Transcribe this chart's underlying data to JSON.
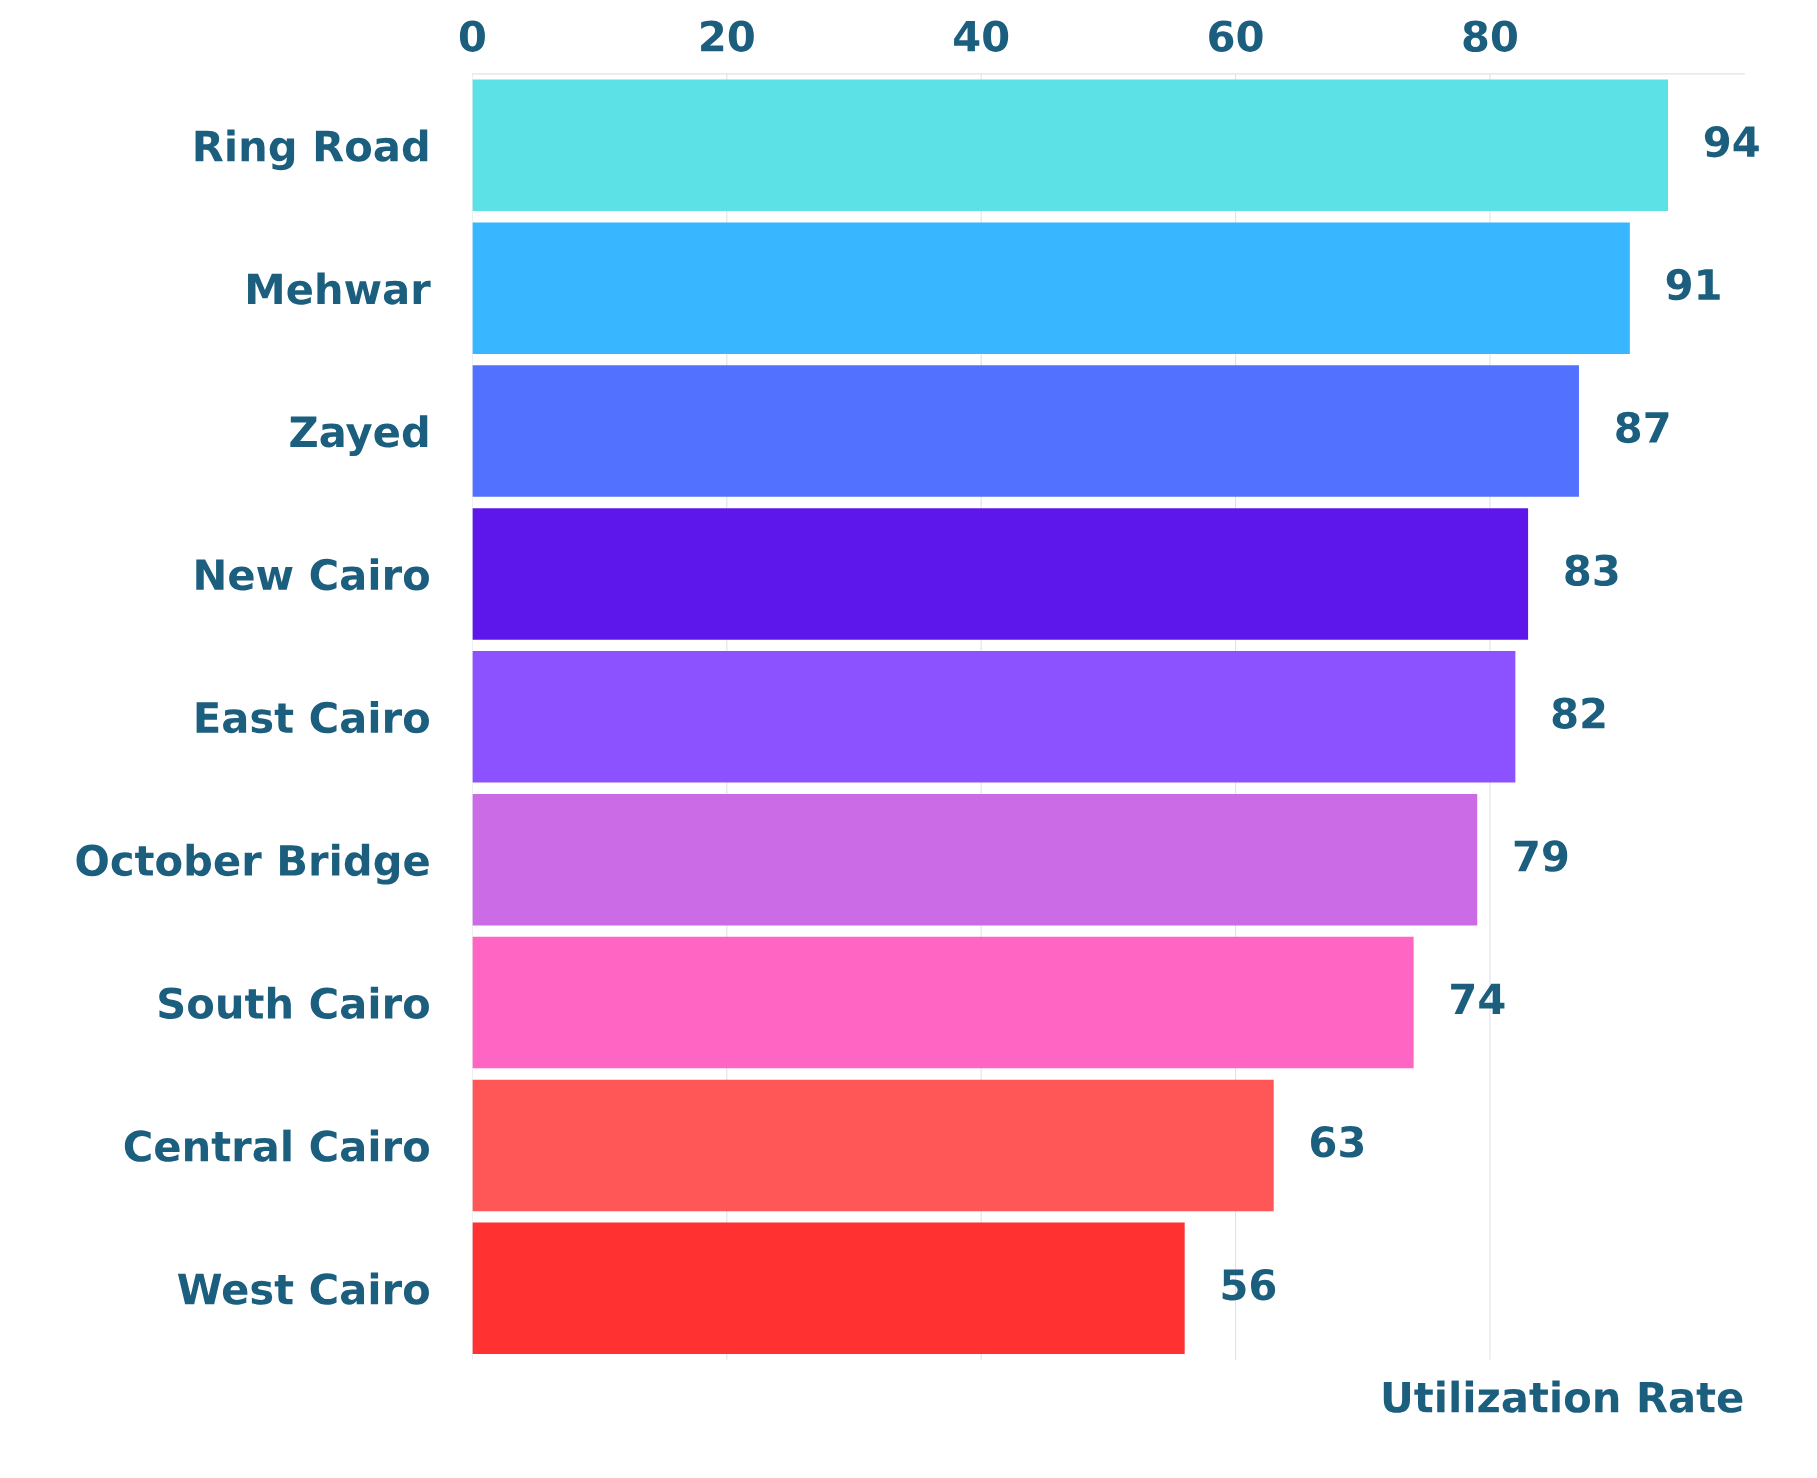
{
  "chart_data": {
    "type": "bar",
    "orientation": "horizontal",
    "xlabel": "Utilization Rate",
    "categories": [
      "Ring Road",
      "Mehwar",
      "Zayed",
      "New Cairo",
      "East Cairo",
      "October Bridge",
      "South Cairo",
      "Central Cairo",
      "West Cairo"
    ],
    "values": [
      94,
      91,
      87,
      83,
      82,
      79,
      74,
      63,
      56
    ],
    "colors": [
      "#5ce1e6",
      "#38b6ff",
      "#5271ff",
      "#5e17eb",
      "#8c52ff",
      "#cb6ce6",
      "#ff66c4",
      "#ff5757",
      "#ff3131"
    ],
    "xlim": [
      0,
      100
    ],
    "xticks": [
      0,
      20,
      40,
      60,
      80
    ],
    "grid": "x",
    "data_labels": true
  }
}
